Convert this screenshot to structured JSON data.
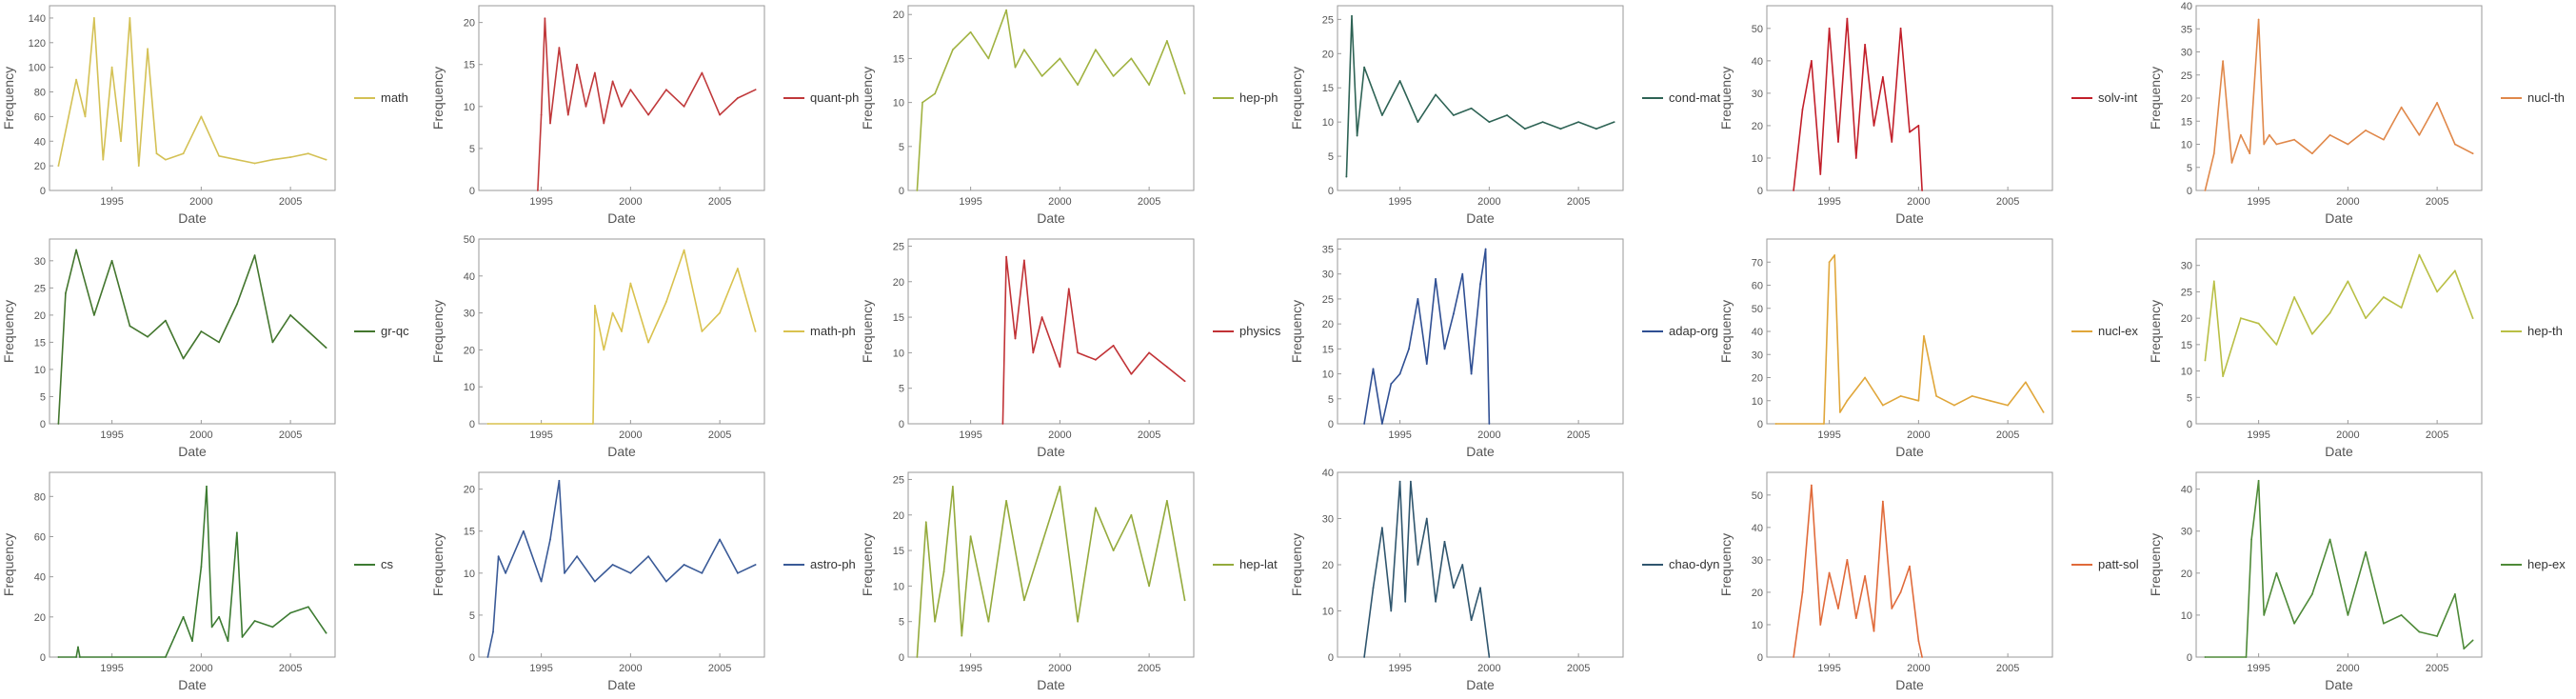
{
  "chart_data": [
    {
      "type": "line",
      "name": "math",
      "color": "#d4c155",
      "xlabel": "Date",
      "ylabel": "Frequency",
      "xlim": [
        1991.5,
        2007.5
      ],
      "xticks": [
        1995,
        2000,
        2005
      ],
      "ylim": [
        0,
        150
      ],
      "yticks": [
        0,
        20,
        40,
        60,
        80,
        100,
        120,
        140
      ],
      "x": [
        1992,
        1993,
        1993.5,
        1994,
        1994.5,
        1995,
        1995.5,
        1996,
        1996.5,
        1997,
        1997.5,
        1998,
        1999,
        2000,
        2001,
        2002,
        2003,
        2004,
        2005,
        2006,
        2007
      ],
      "y": [
        20,
        90,
        60,
        140,
        25,
        100,
        40,
        140,
        20,
        115,
        30,
        25,
        30,
        60,
        28,
        25,
        22,
        25,
        27,
        30,
        25
      ]
    },
    {
      "type": "line",
      "name": "quant-ph",
      "color": "#c0393b",
      "xlabel": "Date",
      "ylabel": "Frequency",
      "xlim": [
        1991.5,
        2007.5
      ],
      "xticks": [
        1995,
        2000,
        2005
      ],
      "ylim": [
        0,
        22
      ],
      "yticks": [
        0,
        5,
        10,
        15,
        20
      ],
      "x": [
        1994.8,
        1995,
        1995.2,
        1995.5,
        1996,
        1996.5,
        1997,
        1997.5,
        1998,
        1998.5,
        1999,
        1999.5,
        2000,
        2001,
        2002,
        2003,
        2004,
        2005,
        2006,
        2007
      ],
      "y": [
        0,
        9,
        20.5,
        8,
        17,
        9,
        15,
        10,
        14,
        8,
        13,
        10,
        12,
        9,
        12,
        10,
        14,
        9,
        11,
        12
      ]
    },
    {
      "type": "line",
      "name": "hep-ph",
      "color": "#a0b240",
      "xlabel": "Date",
      "ylabel": "Frequency",
      "xlim": [
        1991.5,
        2007.5
      ],
      "xticks": [
        1995,
        2000,
        2005
      ],
      "ylim": [
        0,
        21
      ],
      "yticks": [
        0,
        5,
        10,
        15,
        20
      ],
      "x": [
        1992,
        1992.3,
        1993,
        1994,
        1995,
        1996,
        1997,
        1997.5,
        1998,
        1999,
        2000,
        2001,
        2002,
        2003,
        2004,
        2005,
        2006,
        2007
      ],
      "y": [
        0,
        10,
        11,
        16,
        18,
        15,
        20.5,
        14,
        16,
        13,
        15,
        12,
        16,
        13,
        15,
        12,
        17,
        11
      ]
    },
    {
      "type": "line",
      "name": "cond-mat",
      "color": "#2e6355",
      "xlabel": "Date",
      "ylabel": "Frequency",
      "xlim": [
        1991.5,
        2007.5
      ],
      "xticks": [
        1995,
        2000,
        2005
      ],
      "ylim": [
        0,
        27
      ],
      "yticks": [
        0,
        5,
        10,
        15,
        20,
        25
      ],
      "x": [
        1992,
        1992.3,
        1992.6,
        1993,
        1994,
        1995,
        1996,
        1997,
        1998,
        1999,
        2000,
        2001,
        2002,
        2003,
        2004,
        2005,
        2006,
        2007
      ],
      "y": [
        2,
        25.5,
        8,
        18,
        11,
        16,
        10,
        14,
        11,
        12,
        10,
        11,
        9,
        10,
        9,
        10,
        9,
        10
      ]
    },
    {
      "type": "line",
      "name": "solv-int",
      "color": "#c21f2a",
      "xlabel": "Date",
      "ylabel": "Frequency",
      "xlim": [
        1991.5,
        2007.5
      ],
      "xticks": [
        1995,
        2000,
        2005
      ],
      "ylim": [
        0,
        57
      ],
      "yticks": [
        0,
        10,
        20,
        30,
        40,
        50
      ],
      "x": [
        1993,
        1993.5,
        1994,
        1994.5,
        1995,
        1995.5,
        1996,
        1996.5,
        1997,
        1997.5,
        1998,
        1998.5,
        1999,
        1999.5,
        2000,
        2000.2
      ],
      "y": [
        0,
        25,
        40,
        5,
        50,
        15,
        53,
        10,
        45,
        20,
        35,
        15,
        50,
        18,
        20,
        0
      ]
    },
    {
      "type": "line",
      "name": "nucl-th",
      "color": "#e0884a",
      "xlabel": "Date",
      "ylabel": "Frequency",
      "xlim": [
        1991.5,
        2007.5
      ],
      "xticks": [
        1995,
        2000,
        2005
      ],
      "ylim": [
        0,
        40
      ],
      "yticks": [
        0,
        5,
        10,
        15,
        20,
        25,
        30,
        35,
        40
      ],
      "x": [
        1992,
        1992.5,
        1993,
        1993.5,
        1994,
        1994.5,
        1995,
        1995.3,
        1995.6,
        1996,
        1997,
        1998,
        1999,
        2000,
        2001,
        2002,
        2003,
        2004,
        2005,
        2006,
        2007
      ],
      "y": [
        0,
        8,
        28,
        6,
        12,
        8,
        37,
        10,
        12,
        10,
        11,
        8,
        12,
        10,
        13,
        11,
        18,
        12,
        19,
        10,
        8
      ]
    },
    {
      "type": "line",
      "name": "gr-qc",
      "color": "#43762e",
      "xlabel": "Date",
      "ylabel": "Frequency",
      "xlim": [
        1991.5,
        2007.5
      ],
      "xticks": [
        1995,
        2000,
        2005
      ],
      "ylim": [
        0,
        34
      ],
      "yticks": [
        0,
        5,
        10,
        15,
        20,
        25,
        30
      ],
      "x": [
        1992,
        1992.4,
        1993,
        1994,
        1995,
        1996,
        1997,
        1998,
        1999,
        2000,
        2001,
        2002,
        2003,
        2004,
        2005,
        2006,
        2007
      ],
      "y": [
        0,
        24,
        32,
        20,
        30,
        18,
        16,
        19,
        12,
        17,
        15,
        22,
        31,
        15,
        20,
        17,
        14
      ]
    },
    {
      "type": "line",
      "name": "math-ph",
      "color": "#d9c24f",
      "xlabel": "Date",
      "ylabel": "Frequency",
      "xlim": [
        1991.5,
        2007.5
      ],
      "xticks": [
        1995,
        2000,
        2005
      ],
      "ylim": [
        0,
        50
      ],
      "yticks": [
        0,
        10,
        20,
        30,
        40,
        50
      ],
      "x": [
        1992,
        1997.9,
        1998,
        1998.5,
        1999,
        1999.5,
        2000,
        2001,
        2002,
        2003,
        2004,
        2005,
        2006,
        2007
      ],
      "y": [
        0,
        0,
        32,
        20,
        30,
        25,
        38,
        22,
        33,
        47,
        25,
        30,
        42,
        25
      ]
    },
    {
      "type": "line",
      "name": "physics",
      "color": "#c13236",
      "xlabel": "Date",
      "ylabel": "Frequency",
      "xlim": [
        1991.5,
        2007.5
      ],
      "xticks": [
        1995,
        2000,
        2005
      ],
      "ylim": [
        0,
        26
      ],
      "yticks": [
        0,
        5,
        10,
        15,
        20,
        25
      ],
      "x": [
        1996.8,
        1997,
        1997.5,
        1998,
        1998.5,
        1999,
        2000,
        2000.5,
        2001,
        2002,
        2003,
        2004,
        2005,
        2006,
        2007
      ],
      "y": [
        0,
        23.5,
        12,
        23,
        10,
        15,
        8,
        19,
        10,
        9,
        11,
        7,
        10,
        8,
        6
      ]
    },
    {
      "type": "line",
      "name": "adap-org",
      "color": "#2f4f93",
      "xlabel": "Date",
      "ylabel": "Frequency",
      "xlim": [
        1991.5,
        2007.5
      ],
      "xticks": [
        1995,
        2000,
        2005
      ],
      "ylim": [
        0,
        37
      ],
      "yticks": [
        0,
        5,
        10,
        15,
        20,
        25,
        30,
        35
      ],
      "x": [
        1993,
        1993.5,
        1994,
        1994.5,
        1995,
        1995.5,
        1996,
        1996.5,
        1997,
        1997.5,
        1998,
        1998.5,
        1999,
        1999.5,
        1999.8,
        2000
      ],
      "y": [
        0,
        11,
        0,
        8,
        10,
        15,
        25,
        12,
        29,
        15,
        22,
        30,
        10,
        28,
        35,
        0
      ]
    },
    {
      "type": "line",
      "name": "nucl-ex",
      "color": "#e0a63a",
      "xlabel": "Date",
      "ylabel": "Frequency",
      "xlim": [
        1991.5,
        2007.5
      ],
      "xticks": [
        1995,
        2000,
        2005
      ],
      "ylim": [
        0,
        80
      ],
      "yticks": [
        0,
        10,
        20,
        30,
        40,
        50,
        60,
        70
      ],
      "x": [
        1992,
        1994.7,
        1995,
        1995.3,
        1995.6,
        1996,
        1997,
        1998,
        1999,
        2000,
        2000.3,
        2001,
        2002,
        2003,
        2004,
        2005,
        2006,
        2007
      ],
      "y": [
        0,
        0,
        70,
        73,
        5,
        10,
        20,
        8,
        12,
        10,
        38,
        12,
        8,
        12,
        10,
        8,
        18,
        5
      ]
    },
    {
      "type": "line",
      "name": "hep-th",
      "color": "#b9bf45",
      "xlabel": "Date",
      "ylabel": "Frequency",
      "xlim": [
        1991.5,
        2007.5
      ],
      "xticks": [
        1995,
        2000,
        2005
      ],
      "ylim": [
        0,
        35
      ],
      "yticks": [
        0,
        5,
        10,
        15,
        20,
        25,
        30
      ],
      "x": [
        1992,
        1992.5,
        1993,
        1994,
        1995,
        1996,
        1997,
        1998,
        1999,
        2000,
        2001,
        2002,
        2003,
        2004,
        2005,
        2006,
        2007
      ],
      "y": [
        12,
        27,
        9,
        20,
        19,
        15,
        24,
        17,
        21,
        27,
        20,
        24,
        22,
        32,
        25,
        29,
        20
      ]
    },
    {
      "type": "line",
      "name": "cs",
      "color": "#3d7b32",
      "xlabel": "Date",
      "ylabel": "Frequency",
      "xlim": [
        1991.5,
        2007.5
      ],
      "xticks": [
        1995,
        2000,
        2005
      ],
      "ylim": [
        0,
        92
      ],
      "yticks": [
        0,
        20,
        40,
        60,
        80
      ],
      "x": [
        1992,
        1993,
        1993.1,
        1993.2,
        1998,
        1998.5,
        1999,
        1999.5,
        2000,
        2000.3,
        2000.6,
        2001,
        2001.5,
        2002,
        2002.3,
        2003,
        2004,
        2005,
        2006,
        2007
      ],
      "y": [
        0,
        0,
        5,
        0,
        0,
        10,
        20,
        8,
        45,
        85,
        15,
        20,
        8,
        62,
        10,
        18,
        15,
        22,
        25,
        12
      ]
    },
    {
      "type": "line",
      "name": "astro-ph",
      "color": "#3a5a97",
      "xlabel": "Date",
      "ylabel": "Frequency",
      "xlim": [
        1991.5,
        2007.5
      ],
      "xticks": [
        1995,
        2000,
        2005
      ],
      "ylim": [
        0,
        22
      ],
      "yticks": [
        0,
        5,
        10,
        15,
        20
      ],
      "x": [
        1992,
        1992.3,
        1992.6,
        1993,
        1994,
        1995,
        1995.5,
        1996,
        1996.3,
        1997,
        1998,
        1999,
        2000,
        2001,
        2002,
        2003,
        2004,
        2005,
        2006,
        2007
      ],
      "y": [
        0,
        3,
        12,
        10,
        15,
        9,
        14,
        21,
        10,
        12,
        9,
        11,
        10,
        12,
        9,
        11,
        10,
        14,
        10,
        11
      ]
    },
    {
      "type": "line",
      "name": "hep-lat",
      "color": "#94aa3c",
      "xlabel": "Date",
      "ylabel": "Frequency",
      "xlim": [
        1991.5,
        2007.5
      ],
      "xticks": [
        1995,
        2000,
        2005
      ],
      "ylim": [
        0,
        26
      ],
      "yticks": [
        0,
        5,
        10,
        15,
        20,
        25
      ],
      "x": [
        1992,
        1992.5,
        1993,
        1993.5,
        1994,
        1994.5,
        1995,
        1996,
        1997,
        1998,
        1999,
        2000,
        2001,
        2002,
        2003,
        2004,
        2005,
        2006,
        2007
      ],
      "y": [
        0,
        19,
        5,
        12,
        24,
        3,
        17,
        5,
        22,
        8,
        16,
        24,
        5,
        21,
        15,
        20,
        10,
        22,
        8
      ]
    },
    {
      "type": "line",
      "name": "chao-dyn",
      "color": "#30566e",
      "xlabel": "Date",
      "ylabel": "Frequency",
      "xlim": [
        1991.5,
        2007.5
      ],
      "xticks": [
        1995,
        2000,
        2005
      ],
      "ylim": [
        0,
        40
      ],
      "yticks": [
        0,
        10,
        20,
        30,
        40
      ],
      "x": [
        1993,
        1993.5,
        1994,
        1994.5,
        1995,
        1995.3,
        1995.6,
        1996,
        1996.5,
        1997,
        1997.5,
        1998,
        1998.5,
        1999,
        1999.5,
        2000
      ],
      "y": [
        0,
        15,
        28,
        10,
        38,
        12,
        38,
        20,
        30,
        12,
        25,
        15,
        20,
        8,
        15,
        0
      ]
    },
    {
      "type": "line",
      "name": "patt-sol",
      "color": "#e06a3a",
      "xlabel": "Date",
      "ylabel": "Frequency",
      "xlim": [
        1991.5,
        2007.5
      ],
      "xticks": [
        1995,
        2000,
        2005
      ],
      "ylim": [
        0,
        57
      ],
      "yticks": [
        0,
        10,
        20,
        30,
        40,
        50
      ],
      "x": [
        1993,
        1993.5,
        1994,
        1994.5,
        1995,
        1995.5,
        1996,
        1996.5,
        1997,
        1997.5,
        1998,
        1998.5,
        1999,
        1999.5,
        2000,
        2000.2
      ],
      "y": [
        0,
        20,
        53,
        10,
        26,
        15,
        30,
        12,
        25,
        8,
        48,
        15,
        20,
        28,
        5,
        0
      ]
    },
    {
      "type": "line",
      "name": "hep-ex",
      "color": "#4e8a38",
      "xlabel": "Date",
      "ylabel": "Frequency",
      "xlim": [
        1991.5,
        2007.5
      ],
      "xticks": [
        1995,
        2000,
        2005
      ],
      "ylim": [
        0,
        44
      ],
      "yticks": [
        0,
        10,
        20,
        30,
        40
      ],
      "x": [
        1992,
        1994.3,
        1994.6,
        1995,
        1995.3,
        1996,
        1997,
        1998,
        1999,
        2000,
        2001,
        2002,
        2003,
        2004,
        2005,
        2006,
        2006.5,
        2007
      ],
      "y": [
        0,
        0,
        28,
        42,
        10,
        20,
        8,
        15,
        28,
        10,
        25,
        8,
        10,
        6,
        5,
        15,
        2,
        4
      ]
    }
  ]
}
